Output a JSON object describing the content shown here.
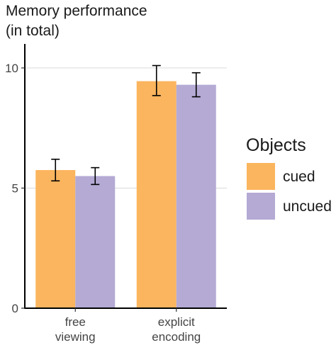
{
  "chart_data": {
    "type": "bar",
    "title_lines": [
      "Memory performance",
      "(in total)"
    ],
    "categories": [
      {
        "lines": [
          "free",
          "viewing"
        ]
      },
      {
        "lines": [
          "explicit",
          "encoding"
        ]
      }
    ],
    "series": [
      {
        "name": "cued",
        "color": "#FBB55E",
        "values": [
          5.75,
          9.45
        ],
        "error_low": [
          5.3,
          8.85
        ],
        "error_high": [
          6.2,
          10.1
        ]
      },
      {
        "name": "uncued",
        "color": "#B4AAD4",
        "values": [
          5.5,
          9.3
        ],
        "error_low": [
          5.15,
          8.8
        ],
        "error_high": [
          5.85,
          9.8
        ]
      }
    ],
    "ylim": [
      0,
      11
    ],
    "yticks": [
      0,
      5,
      10
    ],
    "grid": true,
    "grid_color": "#DADADA",
    "errorbar_color": "#000000",
    "legend": {
      "title": "Objects",
      "placement": "right"
    }
  }
}
